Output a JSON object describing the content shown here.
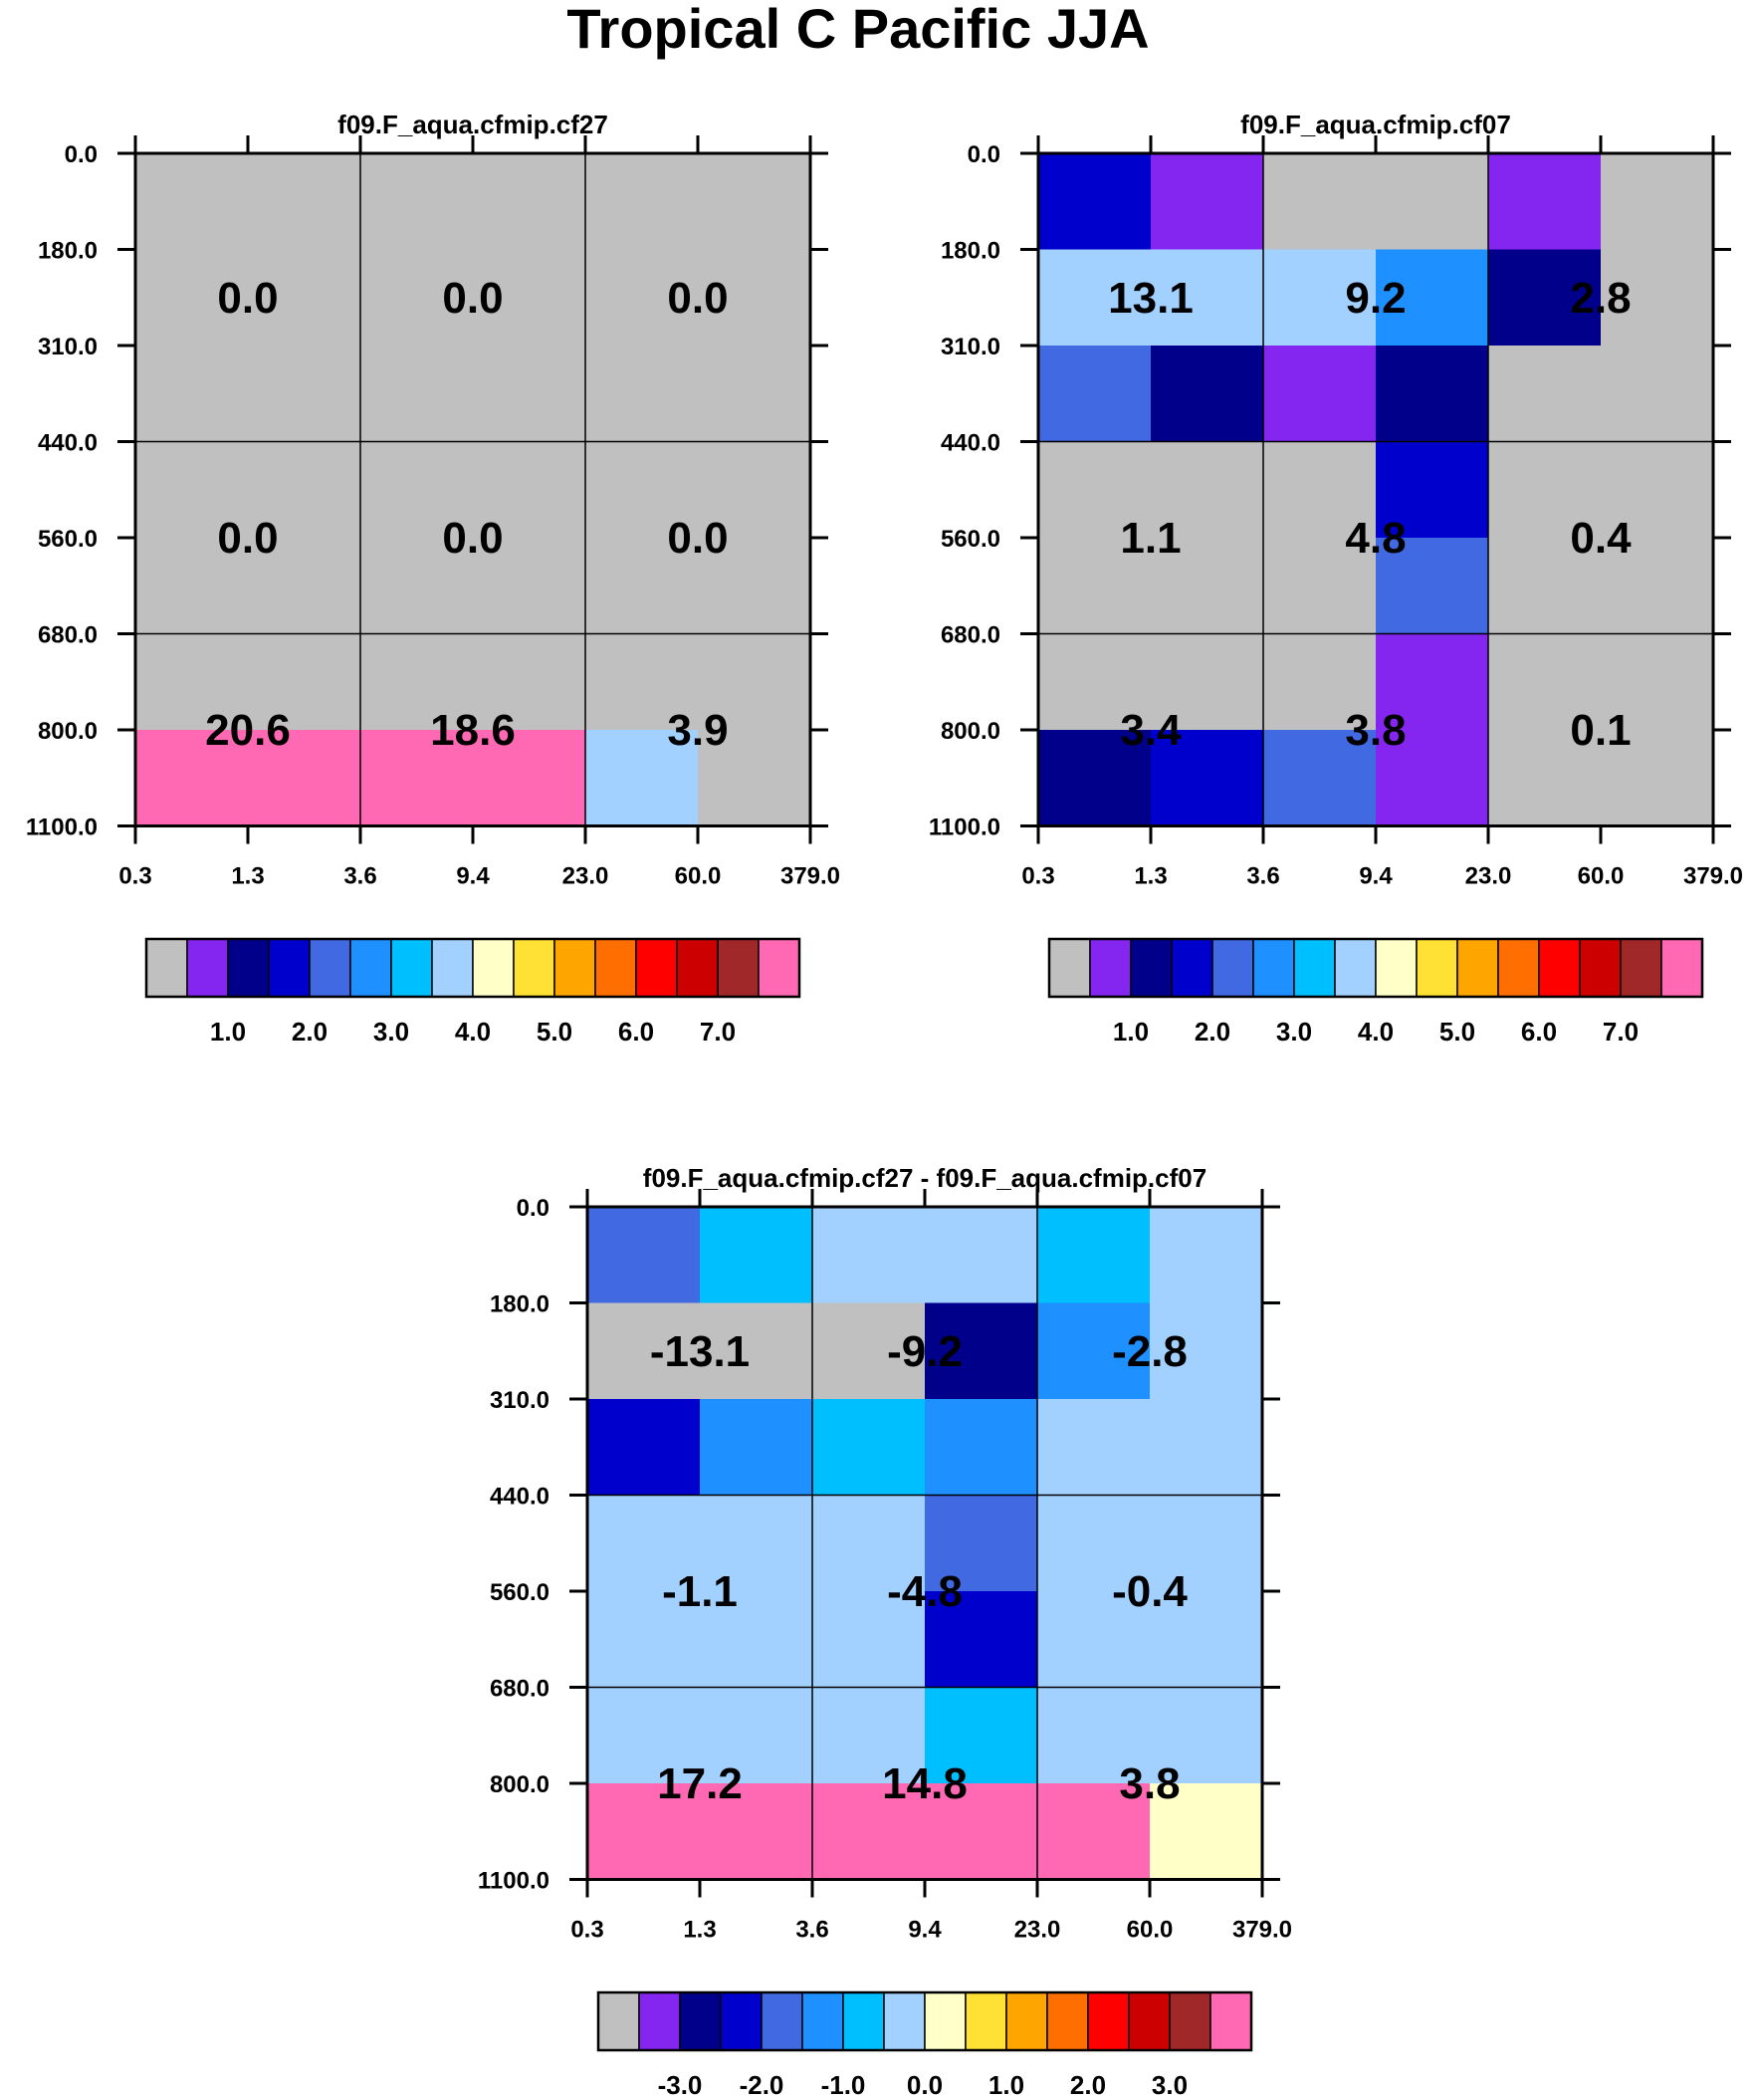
{
  "chart_data": {
    "type": "heatmap",
    "title": "Tropical C Pacific JJA",
    "x_edges": [
      "0.3",
      "1.3",
      "3.6",
      "9.4",
      "23.0",
      "60.0",
      "379.0"
    ],
    "y_edges": [
      "0.0",
      "180.0",
      "310.0",
      "440.0",
      "560.0",
      "680.0",
      "800.0",
      "1100.0"
    ],
    "colors": {
      "gray": "#c0c0c0",
      "c1": "#8426f0",
      "c2": "#00008b",
      "c3": "#0000cd",
      "c4": "#4169e1",
      "c5": "#1e90ff",
      "c6": "#00bfff",
      "c7": "#a3d1ff",
      "c8": "#ffffc8",
      "c9": "#ffe135",
      "c10": "#ffa500",
      "c11": "#ff6e00",
      "c12": "#ff0000",
      "c13": "#cd0000",
      "c14": "#a02828",
      "c15": "#ff69b4"
    },
    "colorbar_order": [
      "gray",
      "c1",
      "c2",
      "c3",
      "c4",
      "c5",
      "c6",
      "c7",
      "c8",
      "c9",
      "c10",
      "c11",
      "c12",
      "c13",
      "c14",
      "c15"
    ],
    "panels": [
      {
        "name": "cf27",
        "title": "f09.F_aqua.cfmip.cf27",
        "cells": [
          [
            "gray",
            "gray",
            "gray",
            "gray",
            "gray",
            "gray"
          ],
          [
            "gray",
            "gray",
            "gray",
            "gray",
            "gray",
            "gray"
          ],
          [
            "gray",
            "gray",
            "gray",
            "gray",
            "gray",
            "gray"
          ],
          [
            "gray",
            "gray",
            "gray",
            "gray",
            "gray",
            "gray"
          ],
          [
            "gray",
            "gray",
            "gray",
            "gray",
            "gray",
            "gray"
          ],
          [
            "gray",
            "gray",
            "gray",
            "gray",
            "gray",
            "gray"
          ],
          [
            "c15",
            "c15",
            "c15",
            "c15",
            "c7",
            "gray"
          ]
        ],
        "values": [
          [
            "0.0",
            "0.0",
            "0.0"
          ],
          [
            "0.0",
            "0.0",
            "0.0"
          ],
          [
            "20.6",
            "18.6",
            "3.9"
          ]
        ],
        "colorbar_labels": [
          "1.0",
          "2.0",
          "3.0",
          "4.0",
          "5.0",
          "6.0",
          "7.0"
        ]
      },
      {
        "name": "cf07",
        "title": "f09.F_aqua.cfmip.cf07",
        "cells": [
          [
            "c3",
            "c1",
            "gray",
            "gray",
            "c1",
            "gray"
          ],
          [
            "c7",
            "c7",
            "c7",
            "c5",
            "c2",
            "gray"
          ],
          [
            "c4",
            "c2",
            "c1",
            "c2",
            "gray",
            "gray"
          ],
          [
            "gray",
            "gray",
            "gray",
            "c3",
            "gray",
            "gray"
          ],
          [
            "gray",
            "gray",
            "gray",
            "c4",
            "gray",
            "gray"
          ],
          [
            "gray",
            "gray",
            "gray",
            "c1",
            "gray",
            "gray"
          ],
          [
            "c2",
            "c3",
            "c4",
            "c1",
            "gray",
            "gray"
          ]
        ],
        "values": [
          [
            "13.1",
            "9.2",
            "2.8"
          ],
          [
            "1.1",
            "4.8",
            "0.4"
          ],
          [
            "3.4",
            "3.8",
            "0.1"
          ]
        ],
        "colorbar_labels": [
          "1.0",
          "2.0",
          "3.0",
          "4.0",
          "5.0",
          "6.0",
          "7.0"
        ]
      },
      {
        "name": "diff",
        "title": "f09.F_aqua.cfmip.cf27 - f09.F_aqua.cfmip.cf07",
        "cells": [
          [
            "c4",
            "c6",
            "c7",
            "c7",
            "c6",
            "c7"
          ],
          [
            "gray",
            "gray",
            "gray",
            "c2",
            "c5",
            "c7"
          ],
          [
            "c3",
            "c5",
            "c6",
            "c5",
            "c7",
            "c7"
          ],
          [
            "c7",
            "c7",
            "c7",
            "c4",
            "c7",
            "c7"
          ],
          [
            "c7",
            "c7",
            "c7",
            "c3",
            "c7",
            "c7"
          ],
          [
            "c7",
            "c7",
            "c7",
            "c6",
            "c7",
            "c7"
          ],
          [
            "c15",
            "c15",
            "c15",
            "c15",
            "c15",
            "c8"
          ]
        ],
        "values": [
          [
            "-13.1",
            "-9.2",
            "-2.8"
          ],
          [
            "-1.1",
            "-4.8",
            "-0.4"
          ],
          [
            "17.2",
            "14.8",
            "3.8"
          ]
        ],
        "colorbar_labels": [
          "-3.0",
          "-2.0",
          "-1.0",
          "0.0",
          "1.0",
          "2.0",
          "3.0"
        ]
      }
    ]
  }
}
